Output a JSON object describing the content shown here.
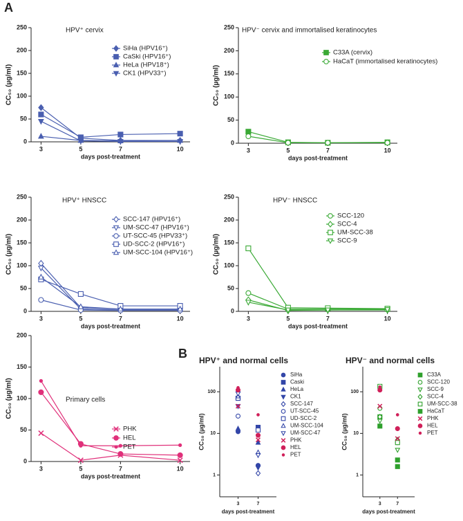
{
  "panel_labels": [
    "A",
    "B"
  ],
  "chart_data": [
    {
      "type": "line",
      "title": "HPV⁺ cervix",
      "x_label": "days post-treatment",
      "y_label": "CC₅₀ (µg/ml)",
      "x": [
        3,
        5,
        7,
        10
      ],
      "xlim": [
        2.5,
        10.5
      ],
      "xticks": [
        3,
        5,
        7,
        10
      ],
      "ylim": [
        0,
        250
      ],
      "yticks": [
        0,
        50,
        100,
        150,
        200,
        250
      ],
      "series": [
        {
          "name": "SiHa (HPV16⁺)",
          "color": "#4a5fb0",
          "marker": "diamond",
          "filled": true,
          "values": [
            75,
            8,
            3,
            3
          ]
        },
        {
          "name": "CaSki (HPV16⁺)",
          "color": "#4a5fb0",
          "marker": "square",
          "filled": true,
          "values": [
            60,
            10,
            16,
            18
          ]
        },
        {
          "name": "HeLa (HPV18⁺)",
          "color": "#4a5fb0",
          "marker": "triangle",
          "filled": true,
          "values": [
            12,
            3,
            2,
            3
          ]
        },
        {
          "name": "CK1 (HPV33⁺)",
          "color": "#4a5fb0",
          "marker": "triangle-down",
          "filled": true,
          "values": [
            45,
            2,
            1,
            1
          ]
        }
      ]
    },
    {
      "type": "line",
      "title": "HPV⁻ cervix and immortalised keratinocytes",
      "x_label": "days post-treatment",
      "y_label": "CC₅₀ (µg/ml)",
      "x": [
        3,
        5,
        7,
        10
      ],
      "xlim": [
        2.5,
        10.5
      ],
      "xticks": [
        3,
        5,
        7,
        10
      ],
      "ylim": [
        0,
        250
      ],
      "yticks": [
        0,
        50,
        100,
        150,
        200,
        250
      ],
      "series": [
        {
          "name": "C33A (cervix)",
          "color": "#3aa935",
          "marker": "square",
          "filled": true,
          "values": [
            25,
            2,
            1,
            2
          ]
        },
        {
          "name": "HaCaT (immortalised keratinocytes)",
          "color": "#3aa935",
          "marker": "circle",
          "filled": false,
          "values": [
            15,
            1,
            1,
            1
          ]
        }
      ]
    },
    {
      "type": "line",
      "title": "HPV⁺ HNSCC",
      "x_label": "days post-treatment",
      "y_label": "CC₅₀ (µg/ml)",
      "x": [
        3,
        5,
        7,
        10
      ],
      "xlim": [
        2.5,
        10.5
      ],
      "xticks": [
        3,
        5,
        7,
        10
      ],
      "ylim": [
        0,
        250
      ],
      "yticks": [
        0,
        50,
        100,
        150,
        200,
        250
      ],
      "series": [
        {
          "name": "SCC-147 (HPV16⁺)",
          "color": "#4a5fb0",
          "marker": "diamond",
          "filled": false,
          "values": [
            105,
            8,
            5,
            5
          ]
        },
        {
          "name": "UM-SCC-47 (HPV16⁺)",
          "color": "#4a5fb0",
          "marker": "triangle-down",
          "filled": false,
          "values": [
            95,
            5,
            3,
            3
          ]
        },
        {
          "name": "UT-SCC-45 (HPV33⁺)",
          "color": "#4a5fb0",
          "marker": "circle",
          "filled": false,
          "values": [
            25,
            3,
            2,
            2
          ]
        },
        {
          "name": "UD-SCC-2 (HPV16⁺)",
          "color": "#4a5fb0",
          "marker": "square",
          "filled": false,
          "values": [
            70,
            38,
            12,
            12
          ]
        },
        {
          "name": "UM-SCC-104 (HPV16⁺)",
          "color": "#4a5fb0",
          "marker": "triangle",
          "filled": false,
          "values": [
            75,
            10,
            5,
            5
          ]
        }
      ]
    },
    {
      "type": "line",
      "title": "HPV⁻ HNSCC",
      "x_label": "days post-treatment",
      "y_label": "CC₅₀ (µg/ml)",
      "x": [
        3,
        5,
        7,
        10
      ],
      "xlim": [
        2.5,
        10.5
      ],
      "xticks": [
        3,
        5,
        7,
        10
      ],
      "ylim": [
        0,
        250
      ],
      "yticks": [
        0,
        50,
        100,
        150,
        200,
        250
      ],
      "series": [
        {
          "name": "SCC-120",
          "color": "#3aa935",
          "marker": "circle",
          "filled": false,
          "values": [
            40,
            5,
            5,
            5
          ]
        },
        {
          "name": "SCC-4",
          "color": "#3aa935",
          "marker": "diamond",
          "filled": false,
          "values": [
            25,
            2,
            3,
            3
          ]
        },
        {
          "name": "UM-SCC-38",
          "color": "#3aa935",
          "marker": "square",
          "filled": false,
          "values": [
            138,
            8,
            7,
            6
          ]
        },
        {
          "name": "SCC-9",
          "color": "#3aa935",
          "marker": "triangle-down",
          "filled": false,
          "values": [
            20,
            3,
            3,
            4
          ]
        }
      ]
    },
    {
      "type": "line",
      "title": "Primary cells",
      "x_label": "days post-treatment",
      "y_label": "CC₅₀ (µg/ml)",
      "x": [
        3,
        5,
        7,
        10
      ],
      "xlim": [
        2.5,
        10.5
      ],
      "xticks": [
        3,
        5,
        7,
        10
      ],
      "ylim": [
        0,
        200
      ],
      "yticks": [
        0,
        50,
        100,
        150,
        200
      ],
      "series": [
        {
          "name": "PHK",
          "color": "#e0307a",
          "marker": "x",
          "filled": false,
          "values": [
            45,
            2,
            10,
            2
          ]
        },
        {
          "name": "HEL",
          "color": "#e0307a",
          "marker": "circle",
          "filled": true,
          "values": [
            110,
            28,
            12,
            10
          ]
        },
        {
          "name": "PET",
          "color": "#e0307a",
          "marker": "dot",
          "filled": true,
          "values": [
            128,
            25,
            25,
            26
          ]
        }
      ]
    },
    {
      "type": "scatter",
      "title": "HPV⁺ and normal cells",
      "x_label": "days post-treatment",
      "y_label": "CC₅₀ (µg/ml)",
      "categories": [
        "3",
        "7"
      ],
      "log_scale": true,
      "ylim": [
        0.3,
        400
      ],
      "yticks": [
        1,
        10,
        100
      ],
      "series": [
        {
          "name": "SiHa",
          "color": "#3346a8",
          "marker": "circle",
          "filled": true,
          "values": [
            11,
            1.7
          ]
        },
        {
          "name": "Caski",
          "color": "#3346a8",
          "marker": "square",
          "filled": true,
          "values": [
            70,
            14
          ]
        },
        {
          "name": "HeLa",
          "color": "#3346a8",
          "marker": "triangle",
          "filled": true,
          "values": [
            13,
            6
          ]
        },
        {
          "name": "CK1",
          "color": "#3346a8",
          "marker": "triangle-down",
          "filled": true,
          "values": [
            45,
            1.5
          ]
        },
        {
          "name": "SCC-147",
          "color": "#3346a8",
          "marker": "diamond",
          "filled": false,
          "values": [
            100,
            1.1
          ]
        },
        {
          "name": "UT-SCC-45",
          "color": "#3346a8",
          "marker": "circle",
          "filled": false,
          "values": [
            26,
            12
          ]
        },
        {
          "name": "UD-SCC-2",
          "color": "#3346a8",
          "marker": "square",
          "filled": false,
          "values": [
            70,
            12
          ]
        },
        {
          "name": "UM-SCC-104",
          "color": "#3346a8",
          "marker": "triangle",
          "filled": false,
          "values": [
            78,
            3.5
          ]
        },
        {
          "name": "UM-SCC-47",
          "color": "#3346a8",
          "marker": "triangle-down",
          "filled": false,
          "values": [
            90,
            3
          ]
        },
        {
          "name": "PHK",
          "color": "#d0205a",
          "marker": "x",
          "filled": false,
          "values": [
            45,
            7
          ]
        },
        {
          "name": "HEL",
          "color": "#d0205a",
          "marker": "circle",
          "filled": true,
          "values": [
            110,
            9
          ]
        },
        {
          "name": "PET",
          "color": "#d0205a",
          "marker": "dot",
          "filled": true,
          "values": [
            125,
            28
          ]
        }
      ]
    },
    {
      "type": "scatter",
      "title": "HPV⁻ and normal cells",
      "x_label": "days post-treatment",
      "y_label": "CC₅₀ (µg/ml)",
      "categories": [
        "3",
        "7"
      ],
      "log_scale": true,
      "ylim": [
        0.3,
        400
      ],
      "yticks": [
        1,
        10,
        100
      ],
      "series": [
        {
          "name": "C33A",
          "color": "#2fa02c",
          "marker": "square",
          "filled": true,
          "values": [
            25,
            2.3
          ]
        },
        {
          "name": "SCC-120",
          "color": "#2fa02c",
          "marker": "circle",
          "filled": false,
          "values": [
            40,
            6
          ]
        },
        {
          "name": "SCC-9",
          "color": "#2fa02c",
          "marker": "triangle-down",
          "filled": false,
          "values": [
            20,
            4
          ]
        },
        {
          "name": "SCC-4",
          "color": "#2fa02c",
          "marker": "diamond",
          "filled": false,
          "values": [
            25,
            7
          ]
        },
        {
          "name": "UM-SCC-38",
          "color": "#2fa02c",
          "marker": "square",
          "filled": false,
          "values": [
            135,
            6
          ]
        },
        {
          "name": "HaCaT",
          "color": "#2fa02c",
          "marker": "square",
          "filled": true,
          "values": [
            15,
            1.6
          ]
        },
        {
          "name": "PHK",
          "color": "#d0205a",
          "marker": "x",
          "filled": false,
          "values": [
            45,
            7.5
          ]
        },
        {
          "name": "HEL",
          "color": "#d0205a",
          "marker": "circle",
          "filled": true,
          "values": [
            110,
            13
          ]
        },
        {
          "name": "PET",
          "color": "#d0205a",
          "marker": "dot",
          "filled": true,
          "values": [
            130,
            28
          ]
        }
      ]
    }
  ]
}
